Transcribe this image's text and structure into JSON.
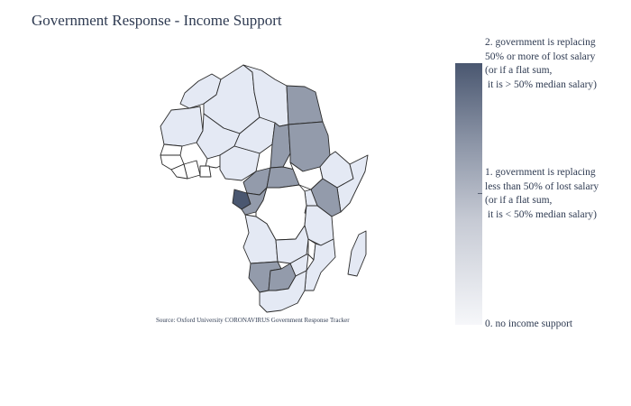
{
  "title": "Government Response - Income Support",
  "source": "Source:  Oxford University CORONAVIRUS Government Response Tracker",
  "colorbar": {
    "labels": [
      "2. government is replacing\n50% or more of lost salary\n(or if a flat sum,\n it is > 50% median salary)",
      "1. government is replacing\nless than 50% of lost salary\n(or if a flat sum,\n it is < 50% median salary)",
      "0. no income support"
    ],
    "colors": [
      "#4a5770",
      "#8b94a6",
      "#f6f7fa"
    ]
  },
  "chart_data": {
    "type": "choropleth",
    "scope": "africa",
    "colorscale": [
      "#f6f7fa",
      "#4a5770"
    ],
    "range": [
      0,
      2
    ],
    "values": {
      "Egypt": 1,
      "Sudan": 1,
      "Chad": 1,
      "Central African Republic": 1,
      "Cameroon": 1,
      "Republic of the Congo": 1,
      "Gabon": 2,
      "Kenya": 1,
      "Namibia": 1,
      "Botswana": 1,
      "Morocco": 0,
      "Algeria": 0,
      "Libya": 0,
      "Niger": 0,
      "Mali": 0,
      "Mauritania": 0,
      "Nigeria": 0,
      "Ethiopia": 0,
      "Somalia": 0,
      "Tanzania": 0,
      "Angola": 0,
      "Zambia": 0,
      "Mozambique": 0,
      "Zimbabwe": 0,
      "South Africa": 0,
      "Madagascar": 0,
      "Uganda": 0,
      "Rwanda": 0
    }
  }
}
